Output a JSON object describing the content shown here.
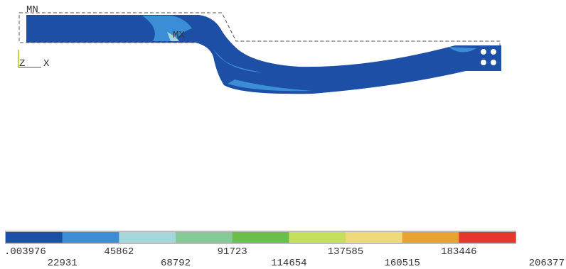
{
  "plot": {
    "min_marker": "MN",
    "max_marker": "MX",
    "axis_labels": [
      "Z",
      "X"
    ]
  },
  "legend": {
    "colors": [
      "#1d4fa6",
      "#3b8ed6",
      "#a4d6dc",
      "#86c896",
      "#6cbe4b",
      "#c5df5a",
      "#efda7a",
      "#e9a132",
      "#e2392a"
    ],
    "labels": [
      ".003976",
      "22931",
      "45862",
      "68792",
      "91723",
      "114654",
      "137585",
      "160515",
      "183446",
      "206377"
    ]
  }
}
